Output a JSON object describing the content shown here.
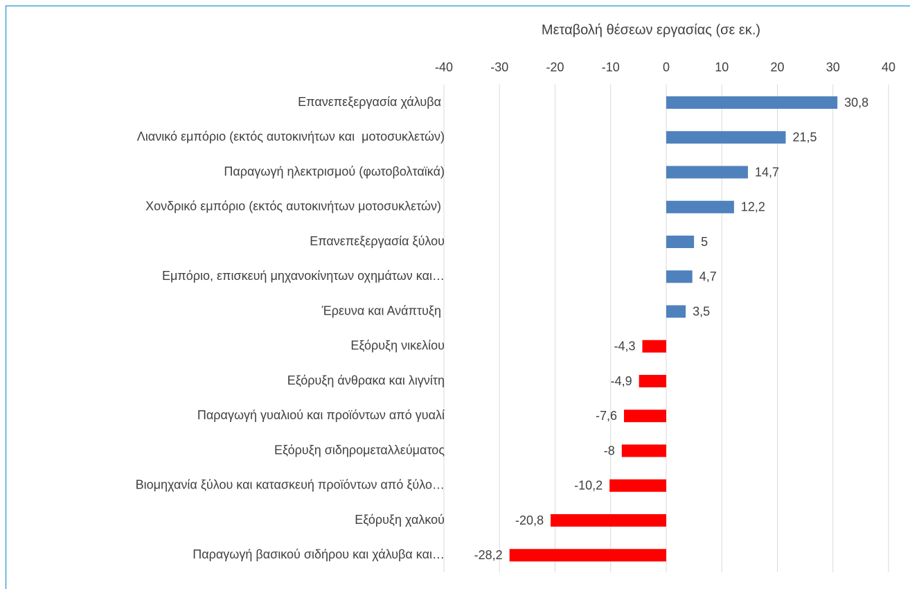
{
  "chart_data": {
    "type": "bar",
    "orientation": "horizontal",
    "title": "Μεταβολή θέσεων εργασίας (σε εκ.)",
    "categories": [
      "Επανεπεξεργασία χάλυβα ",
      "Λιανικό εμπόριο (εκτός αυτοκινήτων και  μοτοσυκλετών)",
      "Παραγωγή ηλεκτρισμού (φωτοβολταϊκά)",
      "Χονδρικό εμπόριο (εκτός αυτοκινήτων μοτοσυκλετών) ",
      "Επανεπεξεργασία ξύλου",
      "Εμπόριο, επισκευή μηχανοκίνητων οχημάτων και…",
      "Έρευνα και Ανάπτυξη ",
      "Εξόρυξη νικελίου",
      "Εξόρυξη άνθρακα και λιγνίτη",
      "Παραγωγή γυαλιού και προϊόντων από γυαλί",
      "Εξόρυξη σιδηρομεταλλεύματος",
      "Βιομηχανία ξύλου και κατασκευή προϊόντων από ξύλο…",
      "Εξόρυξη χαλκού",
      "Παραγωγή βασικού σιδήρου και χάλυβα και…"
    ],
    "values": [
      30.8,
      21.5,
      14.7,
      12.2,
      5,
      4.7,
      3.5,
      -4.3,
      -4.9,
      -7.6,
      -8,
      -10.2,
      -20.8,
      -28.2
    ],
    "value_labels": [
      "30,8",
      "21,5",
      "14,7",
      "12,2",
      "5",
      "4,7",
      "3,5",
      "-4,3",
      "-4,9",
      "-7,6",
      "-8",
      "-10,2",
      "-20,8",
      "-28,2"
    ],
    "colors": [
      "#4f81bd",
      "#4f81bd",
      "#4f81bd",
      "#4f81bd",
      "#4f81bd",
      "#4f81bd",
      "#4f81bd",
      "#ff0000",
      "#ff0000",
      "#ff0000",
      "#ff0000",
      "#ff0000",
      "#ff0000",
      "#ff0000"
    ],
    "xlim": [
      -40,
      40
    ],
    "xticks": [
      -40,
      -30,
      -20,
      -10,
      0,
      10,
      20,
      30,
      40
    ],
    "grid": true
  }
}
